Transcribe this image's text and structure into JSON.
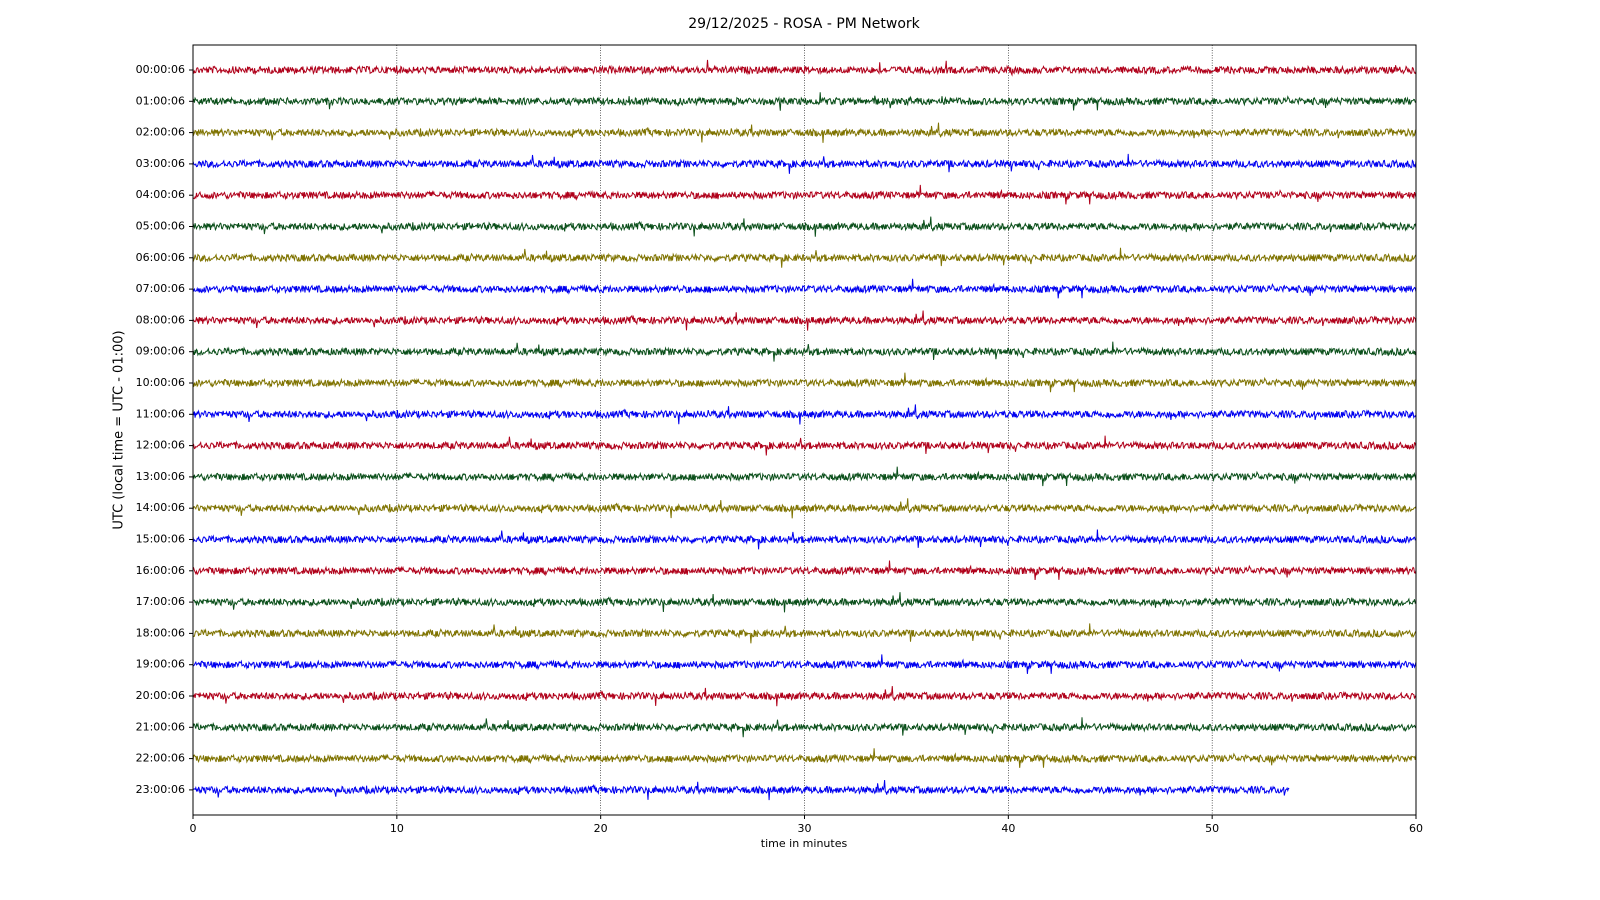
{
  "chart_data": {
    "type": "helicorder",
    "title": "29/12/2025 - ROSA - PM Network",
    "xlabel": "time in minutes",
    "ylabel": "UTC (local time = UTC - 01:00)",
    "categories": [
      "00:00:06",
      "01:00:06",
      "02:00:06",
      "03:00:06",
      "04:00:06",
      "05:00:06",
      "06:00:06",
      "07:00:06",
      "08:00:06",
      "09:00:06",
      "10:00:06",
      "11:00:06",
      "12:00:06",
      "13:00:06",
      "14:00:06",
      "15:00:06",
      "16:00:06",
      "17:00:06",
      "18:00:06",
      "19:00:06",
      "20:00:06",
      "21:00:06",
      "22:00:06",
      "23:00:06"
    ],
    "values": [
      60,
      60,
      60,
      60,
      60,
      60,
      60,
      60,
      60,
      60,
      60,
      60,
      60,
      60,
      60,
      60,
      60,
      60,
      60,
      60,
      60,
      60,
      60,
      53.8
    ],
    "colors": [
      "#b0001a",
      "#0a4f1a",
      "#7f7300",
      "#0000f0"
    ],
    "xlim": [
      0,
      60
    ],
    "xticks": [
      0,
      10,
      20,
      30,
      40,
      50,
      60
    ],
    "grid": true
  }
}
